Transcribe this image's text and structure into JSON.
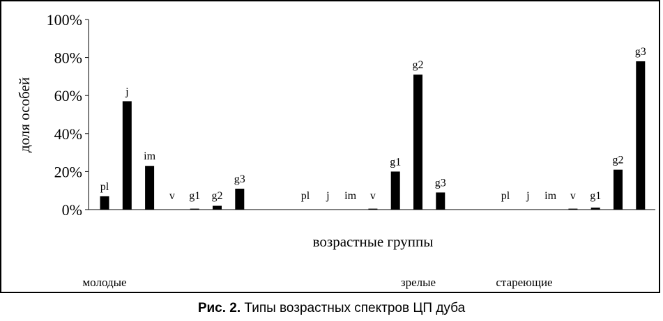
{
  "chart_data": {
    "type": "bar",
    "ylabel": "доля особей",
    "xlabel": "возрастные группы",
    "ylim": [
      0,
      100
    ],
    "yticks": [
      "0%",
      "20%",
      "40%",
      "60%",
      "80%",
      "100%"
    ],
    "groups": [
      {
        "name": "молодые",
        "bars": [
          {
            "label": "pl",
            "value": 7
          },
          {
            "label": "j",
            "value": 57
          },
          {
            "label": "im",
            "value": 23
          },
          {
            "label": "v",
            "value": 0
          },
          {
            "label": "g1",
            "value": 0.5
          },
          {
            "label": "g2",
            "value": 2
          },
          {
            "label": "g3",
            "value": 11
          }
        ]
      },
      {
        "name": "зрелые",
        "bars": [
          {
            "label": "pl",
            "value": 0
          },
          {
            "label": "j",
            "value": 0
          },
          {
            "label": "im",
            "value": 0
          },
          {
            "label": "v",
            "value": 0.5
          },
          {
            "label": "g1",
            "value": 20
          },
          {
            "label": "g2",
            "value": 71
          },
          {
            "label": "g3",
            "value": 9
          }
        ]
      },
      {
        "name": "стареющие",
        "bars": [
          {
            "label": "pl",
            "value": 0
          },
          {
            "label": "j",
            "value": 0
          },
          {
            "label": "im",
            "value": 0
          },
          {
            "label": "v",
            "value": 0.5
          },
          {
            "label": "g1",
            "value": 1
          },
          {
            "label": "g2",
            "value": 21
          },
          {
            "label": "g3",
            "value": 78
          }
        ]
      }
    ]
  },
  "caption": {
    "prefix": "Рис. 2.",
    "text": " Типы возрастных спектров ЦП дуба"
  }
}
